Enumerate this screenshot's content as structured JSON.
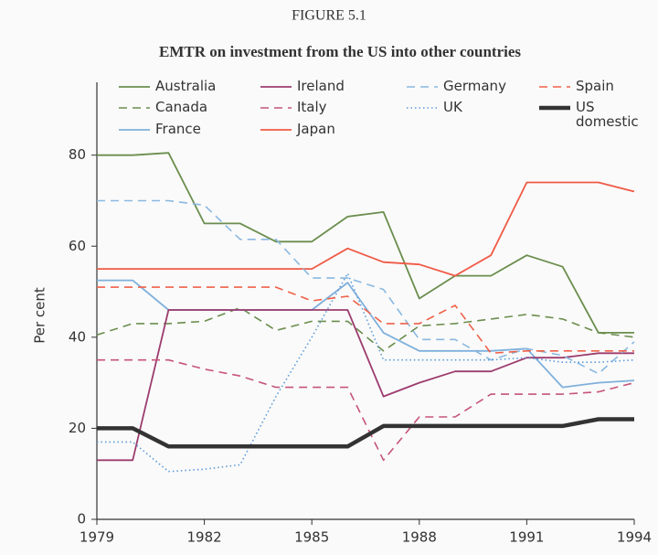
{
  "chart_data": {
    "type": "line",
    "title": "FIGURE 5.1",
    "subtitle": "EMTR on investment from the US into other countries",
    "ylabel": "Per cent",
    "x": [
      1979,
      1980,
      1981,
      1982,
      1983,
      1984,
      1985,
      1986,
      1987,
      1988,
      1989,
      1990,
      1991,
      1992,
      1993,
      1994
    ],
    "xlim": [
      1979,
      1994
    ],
    "xticks": [
      1979,
      1982,
      1985,
      1988,
      1991,
      1994
    ],
    "ylim": [
      0,
      96
    ],
    "yticks": [
      0,
      20,
      40,
      60,
      80
    ],
    "grid": false,
    "series": [
      {
        "name": "Australia",
        "color": "#6b8e4e",
        "style": "solid",
        "values": [
          80,
          80,
          80.5,
          65,
          65,
          61,
          61,
          66.5,
          67.5,
          48.5,
          53.5,
          53.5,
          58,
          55.5,
          41,
          41
        ]
      },
      {
        "name": "Canada",
        "color": "#6b8e4e",
        "style": "dashed",
        "values": [
          40.5,
          43,
          43,
          43.5,
          46.5,
          41.5,
          43.5,
          43.5,
          37,
          42.5,
          43,
          44,
          45,
          44,
          41,
          40
        ]
      },
      {
        "name": "France",
        "color": "#7fb0dc",
        "style": "solid",
        "values": [
          52.5,
          52.5,
          46,
          46,
          46,
          46,
          46,
          52,
          41,
          37,
          37,
          37,
          37.5,
          29,
          30,
          30.5
        ]
      },
      {
        "name": "Ireland",
        "color": "#9c3c6e",
        "style": "solid",
        "values": [
          13,
          13,
          46,
          46,
          46,
          46,
          46,
          46,
          27,
          30,
          32.5,
          32.5,
          35.5,
          35.5,
          36.5,
          36.5
        ]
      },
      {
        "name": "Italy",
        "color": "#c65478",
        "style": "dashed",
        "values": [
          35,
          35,
          35,
          33,
          31.5,
          29,
          29,
          29,
          13,
          22.5,
          22.5,
          27.5,
          27.5,
          27.5,
          28,
          30
        ]
      },
      {
        "name": "Japan",
        "color": "#f05a46",
        "style": "solid",
        "values": [
          55,
          55,
          55,
          55,
          55,
          55,
          55,
          59.5,
          56.5,
          56,
          53.5,
          58,
          74,
          74,
          74,
          72
        ]
      },
      {
        "name": "Germany",
        "color": "#8ab8e0",
        "style": "dashed",
        "values": [
          70,
          70,
          70,
          69,
          61.5,
          61.5,
          53,
          53,
          50.5,
          39.5,
          39.5,
          35,
          37.5,
          36,
          32,
          39
        ]
      },
      {
        "name": "UK",
        "color": "#5a9ad8",
        "style": "dotted",
        "values": [
          17,
          17,
          10.5,
          11,
          12,
          27,
          40,
          54,
          35,
          35,
          35,
          35,
          35.5,
          34.5,
          34.5,
          35
        ]
      },
      {
        "name": "Spain",
        "color": "#f06048",
        "style": "dashed",
        "values": [
          51,
          51,
          51,
          51,
          51,
          51,
          48,
          49,
          43,
          43,
          47,
          36.5,
          37,
          37,
          37,
          37
        ]
      },
      {
        "name": "US domestic",
        "color": "#333333",
        "style": "thick",
        "values": [
          20,
          20,
          16,
          16,
          16,
          16,
          16,
          16,
          20.5,
          20.5,
          20.5,
          20.5,
          20.5,
          20.5,
          22,
          22
        ]
      }
    ]
  }
}
